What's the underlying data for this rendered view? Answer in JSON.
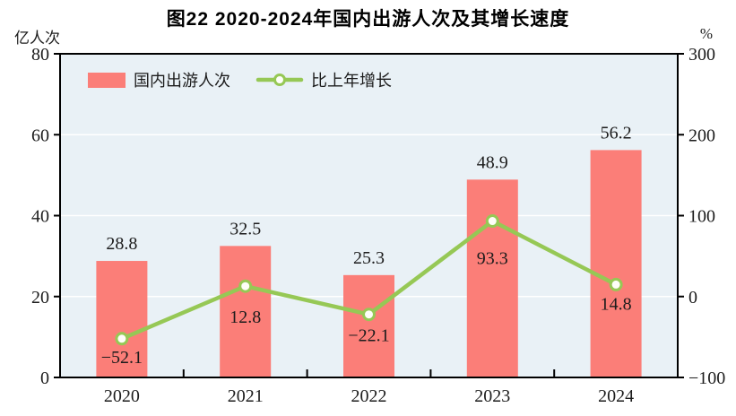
{
  "title": "图22  2020-2024年国内出游人次及其增长速度",
  "left_axis_unit": "亿人次",
  "right_axis_unit": "%",
  "legend": {
    "bar_label": "国内出游人次",
    "line_label": "比上年增长"
  },
  "colors": {
    "bar": "#FB7E78",
    "line": "#96C855",
    "marker_fill": "#FEFEF8",
    "plot_bg": "#E9F1F6",
    "grid": "#FFFFFF",
    "axis": "#000000",
    "text": "#1C1C1C"
  },
  "chart_data": {
    "type": "bar+line combo",
    "categories": [
      "2020",
      "2021",
      "2022",
      "2023",
      "2024"
    ],
    "series": [
      {
        "name": "国内出游人次",
        "type": "bar",
        "axis": "left",
        "unit": "亿人次",
        "values": [
          28.8,
          32.5,
          25.3,
          48.9,
          56.2
        ]
      },
      {
        "name": "比上年增长",
        "type": "line",
        "axis": "right",
        "unit": "%",
        "values": [
          -52.1,
          12.8,
          -22.1,
          93.3,
          14.8
        ]
      }
    ],
    "left_axis": {
      "min": 0,
      "max": 80,
      "ticks": [
        0,
        20,
        40,
        60,
        80
      ]
    },
    "right_axis": {
      "min": -100,
      "max": 300,
      "ticks": [
        -100,
        0,
        100,
        200,
        300
      ]
    },
    "grid": "horizontal",
    "legend_position": "top-left-inside",
    "title": "图22  2020-2024年国内出游人次及其增长速度"
  }
}
